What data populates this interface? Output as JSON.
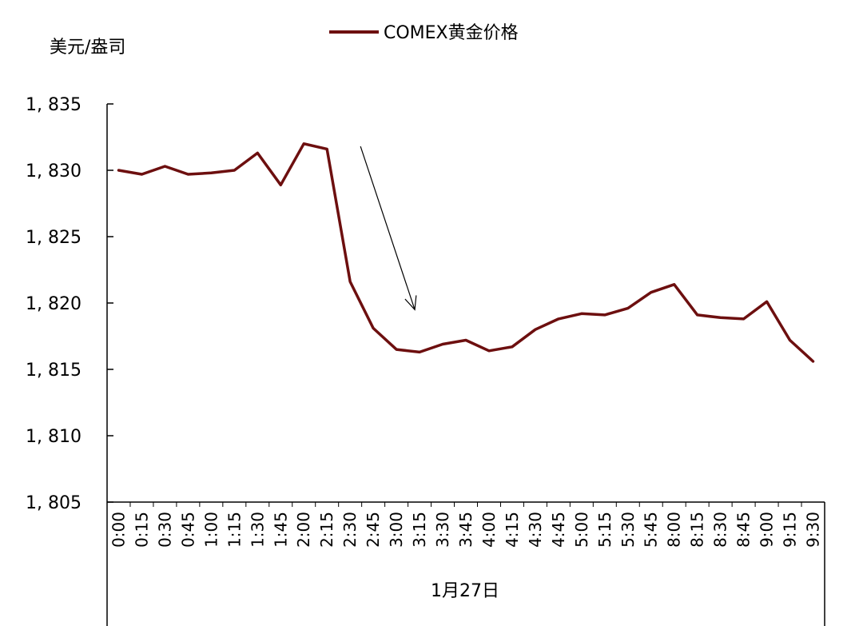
{
  "chart_data": {
    "type": "line",
    "ylabel": "美元/盎司",
    "xlabel": "1月27日",
    "legend_position": "top-center",
    "grid": false,
    "ylim": [
      1805,
      1835
    ],
    "yticks": [
      1805,
      1810,
      1815,
      1820,
      1825,
      1830,
      1835
    ],
    "ytick_labels": [
      "1, 805",
      "1, 810",
      "1, 815",
      "1, 820",
      "1, 825",
      "1, 830",
      "1, 835"
    ],
    "categories": [
      "0:00",
      "0:15",
      "0:30",
      "0:45",
      "1:00",
      "1:15",
      "1:30",
      "1:45",
      "2:00",
      "2:15",
      "2:30",
      "2:45",
      "3:00",
      "3:15",
      "3:30",
      "3:45",
      "4:00",
      "4:15",
      "4:30",
      "4:45",
      "5:00",
      "5:15",
      "5:30",
      "5:45",
      "8:00",
      "8:15",
      "8:30",
      "8:45",
      "9:00",
      "9:15",
      "9:30"
    ],
    "series": [
      {
        "name": "COMEX黄金价格",
        "color": "#6d0f0f",
        "values": [
          1830.0,
          1829.7,
          1830.3,
          1829.7,
          1829.8,
          1830.0,
          1831.3,
          1828.9,
          1832.0,
          1831.6,
          1821.6,
          1818.1,
          1816.5,
          1816.3,
          1816.9,
          1817.2,
          1816.4,
          1816.7,
          1818.0,
          1818.8,
          1819.2,
          1819.1,
          1819.6,
          1820.8,
          1821.4,
          1819.1,
          1818.9,
          1818.8,
          1820.1,
          1817.2,
          1815.6
        ]
      }
    ],
    "annotations": [
      {
        "type": "arrow",
        "from": {
          "x": "2:30",
          "y": 1831.8
        },
        "to": {
          "x": "3:15",
          "y": 1819.5
        }
      }
    ]
  }
}
